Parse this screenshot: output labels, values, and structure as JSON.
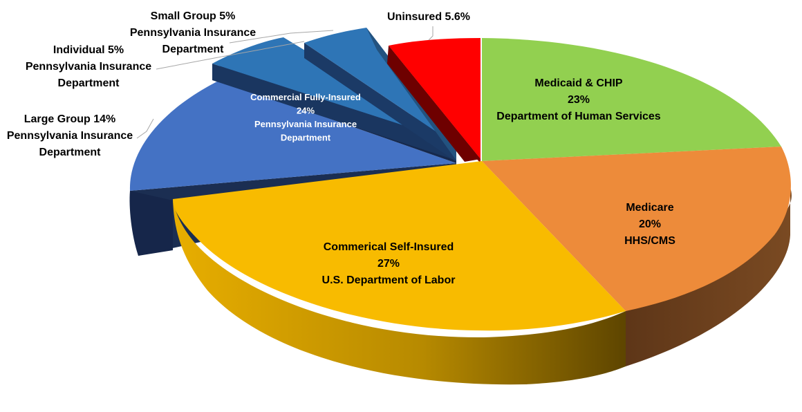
{
  "chart_data": {
    "type": "pie",
    "title": "",
    "style": "3d-exploded",
    "slices": [
      {
        "id": "medicaid",
        "lines": [
          "Medicaid & CHIP",
          "23%",
          "Department of Human Services"
        ],
        "value": 23,
        "color": "#92D050"
      },
      {
        "id": "medicare",
        "lines": [
          "Medicare",
          "20%",
          "HHS/CMS"
        ],
        "value": 20,
        "color": "#ED8B3A"
      },
      {
        "id": "self-insured",
        "lines": [
          "Commerical Self-Insured",
          "27%",
          "U.S. Department of Labor"
        ],
        "value": 27,
        "color": "#F8BB00"
      },
      {
        "id": "large-group",
        "lines": [
          "Large Group 14%",
          "Pennsylvania Insurance",
          "Department"
        ],
        "value": 14,
        "color": "#4472C4"
      },
      {
        "id": "individual",
        "lines": [
          "Individual 5%",
          "Pennsylvania Insurance",
          "Department"
        ],
        "value": 5,
        "color": "#2E75B6"
      },
      {
        "id": "small-group",
        "lines": [
          "Small Group 5%",
          "Pennsylvania Insurance",
          "Department"
        ],
        "value": 5,
        "color": "#2E75B6"
      },
      {
        "id": "uninsured",
        "lines": [
          "Uninsured 5.6%"
        ],
        "value": 5.6,
        "color": "#FF0000"
      }
    ],
    "group_annotation": {
      "lines": [
        "Commercial Fully-Insured",
        "24%",
        "Pennsylvania Insurance",
        "Department"
      ],
      "members": [
        "large-group",
        "individual",
        "small-group"
      ]
    }
  }
}
